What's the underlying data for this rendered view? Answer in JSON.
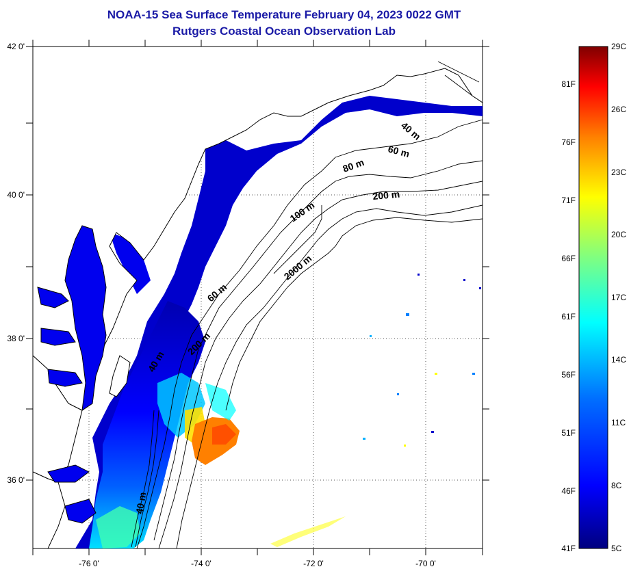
{
  "title": {
    "line1": "NOAA-15 Sea Surface Temperature February 04, 2023 0022 GMT",
    "line2": "Rutgers Coastal Ocean Observation Lab"
  },
  "map": {
    "lon_ticks": [
      "-76 0'",
      "-74 0'",
      "-72 0'",
      "-70 0'"
    ],
    "lat_ticks": [
      "42 0'",
      "40 0'",
      "38 0'",
      "36 0'"
    ],
    "depth_labels": [
      "40 m",
      "60 m",
      "80 m",
      "200 m",
      "100 m",
      "2000 m",
      "60 m",
      "200 m",
      "40 m",
      "40 m"
    ]
  },
  "colorbar": {
    "celsius": [
      "29C",
      "26C",
      "23C",
      "20C",
      "17C",
      "14C",
      "11C",
      "8C",
      "5C"
    ],
    "fahrenheit": [
      "81F",
      "76F",
      "71F",
      "66F",
      "61F",
      "56F",
      "51F",
      "46F",
      "41F"
    ],
    "colors": [
      "#7f0000",
      "#ff0000",
      "#ff8000",
      "#ffff00",
      "#80ff80",
      "#00ffff",
      "#0080ff",
      "#0000ff",
      "#00007f"
    ]
  }
}
